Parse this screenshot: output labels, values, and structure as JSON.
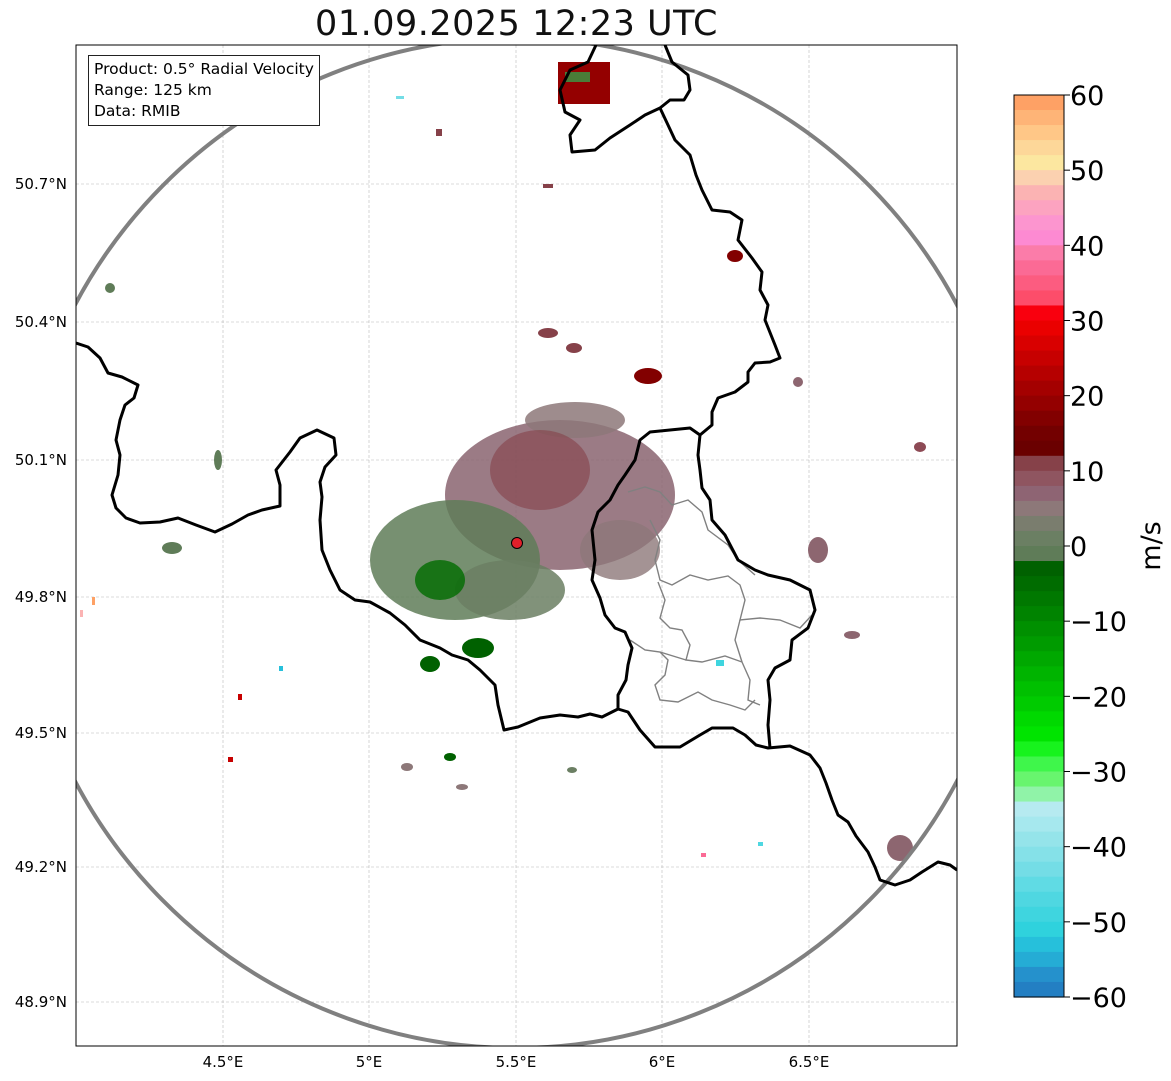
{
  "title": "01.09.2025 12:23 UTC",
  "info": {
    "product": "Product: 0.5° Radial Velocity",
    "range": "Range: 125 km",
    "data": "Data: RMIB"
  },
  "lat_ticks": [
    "50.7°N",
    "50.4°N",
    "50.1°N",
    "49.8°N",
    "49.5°N",
    "49.2°N",
    "48.9°N"
  ],
  "lon_ticks": [
    "4.5°E",
    "5°E",
    "5.5°E",
    "6°E",
    "6.5°E"
  ],
  "colorbar": {
    "label": "m/s",
    "min": -60,
    "max": 60,
    "ticks": [
      "60",
      "50",
      "40",
      "30",
      "20",
      "10",
      "0",
      "−10",
      "−20",
      "−30",
      "−40",
      "−50",
      "−60"
    ],
    "colors_top_to_bottom": [
      "#fea165",
      "#feb477",
      "#ffc787",
      "#fdd799",
      "#fce7a0",
      "#fbd1b0",
      "#fbb3b3",
      "#fca3c0",
      "#fc95cf",
      "#fd8ad2",
      "#fb7ca9",
      "#fb6a95",
      "#fc5c80",
      "#fd4d6a",
      "#f9000e",
      "#ea0000",
      "#d90000",
      "#c70000",
      "#b60000",
      "#a40000",
      "#940000",
      "#820000",
      "#730000",
      "#6a0000",
      "#864149",
      "#8f5560",
      "#8e6473",
      "#8d7879",
      "#7a7d6e",
      "#6b7f63",
      "#5f7c58",
      "#006100",
      "#006c00",
      "#007800",
      "#008300",
      "#009000",
      "#009b00",
      "#00a800",
      "#00b400",
      "#00c000",
      "#00cb00",
      "#00d900",
      "#00e400",
      "#17f31d",
      "#3ff64b",
      "#68f56e",
      "#90f3a8",
      "#b6eaf0",
      "#a6e8ee",
      "#95e4ea",
      "#85e1e8",
      "#74dde6",
      "#60dbe4",
      "#4fd7e1",
      "#3fd5df",
      "#2fd2dd",
      "#26c0db",
      "#25acd5",
      "#2591cc",
      "#237fc3"
    ]
  },
  "colors": {
    "border_country": "#000000",
    "border_province": "#808080",
    "range_ring": "#808080",
    "radar_site": "#e0202a"
  }
}
